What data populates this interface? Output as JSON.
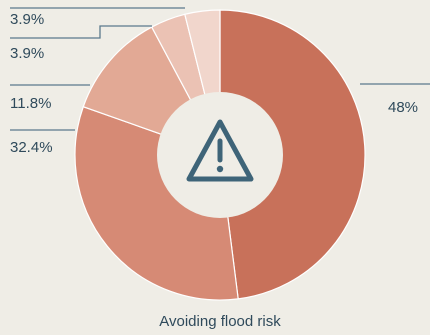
{
  "chart_data": {
    "type": "pie",
    "title": "",
    "caption": "Avoiding flood risk",
    "center_icon": "warning-triangle-icon",
    "slices": [
      {
        "label": "48%",
        "value": 48.0,
        "color": "#c8715a"
      },
      {
        "label": "32.4%",
        "value": 32.4,
        "color": "#d68a75"
      },
      {
        "label": "11.8%",
        "value": 11.8,
        "color": "#e2a995"
      },
      {
        "label": "3.9%",
        "value": 3.9,
        "color": "#ebc2b4"
      },
      {
        "label": "3.9%",
        "value": 3.9,
        "color": "#f1d6cc"
      }
    ]
  },
  "colors": {
    "background": "#efede6",
    "text": "#2f4a5b",
    "leader": "#5b7a8c",
    "hole": "#efede6",
    "icon": "#3e6478"
  }
}
